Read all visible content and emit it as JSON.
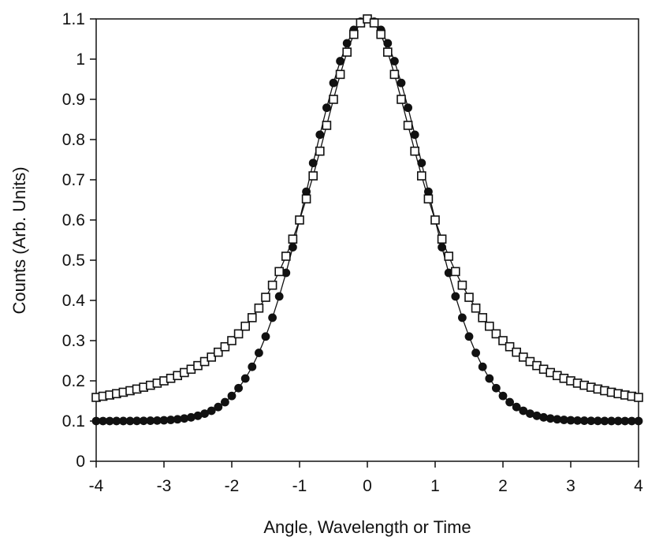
{
  "chart_data": {
    "type": "scatter",
    "title": "",
    "xlabel": "Angle, Wavelength or Time",
    "ylabel": "Counts (Arb. Units)",
    "xlim": [
      -4,
      4
    ],
    "ylim": [
      0,
      1.1
    ],
    "x_ticks": [
      "-4",
      "-3",
      "-2",
      "-1",
      "0",
      "1",
      "2",
      "3",
      "4"
    ],
    "y_ticks": [
      "0",
      "0.1",
      "0.2",
      "0.3",
      "0.4",
      "0.5",
      "0.6",
      "0.7",
      "0.8",
      "0.9",
      "1",
      "1.1"
    ],
    "grid": false,
    "legend": "none",
    "marker_spacing": 0.1,
    "series": [
      {
        "marker": "filled-circle",
        "color": "#111111",
        "line": true,
        "model": "gaussian",
        "x_range": [
          -4,
          4
        ],
        "peak": 1.1,
        "baseline": 0.1,
        "fwhm": 2
      },
      {
        "marker": "open-square",
        "color": "#111111",
        "line": true,
        "model": "lorentzian",
        "x_range": [
          -4,
          4
        ],
        "peak": 1.1,
        "baseline": 0.1,
        "fwhm": 2
      }
    ]
  }
}
